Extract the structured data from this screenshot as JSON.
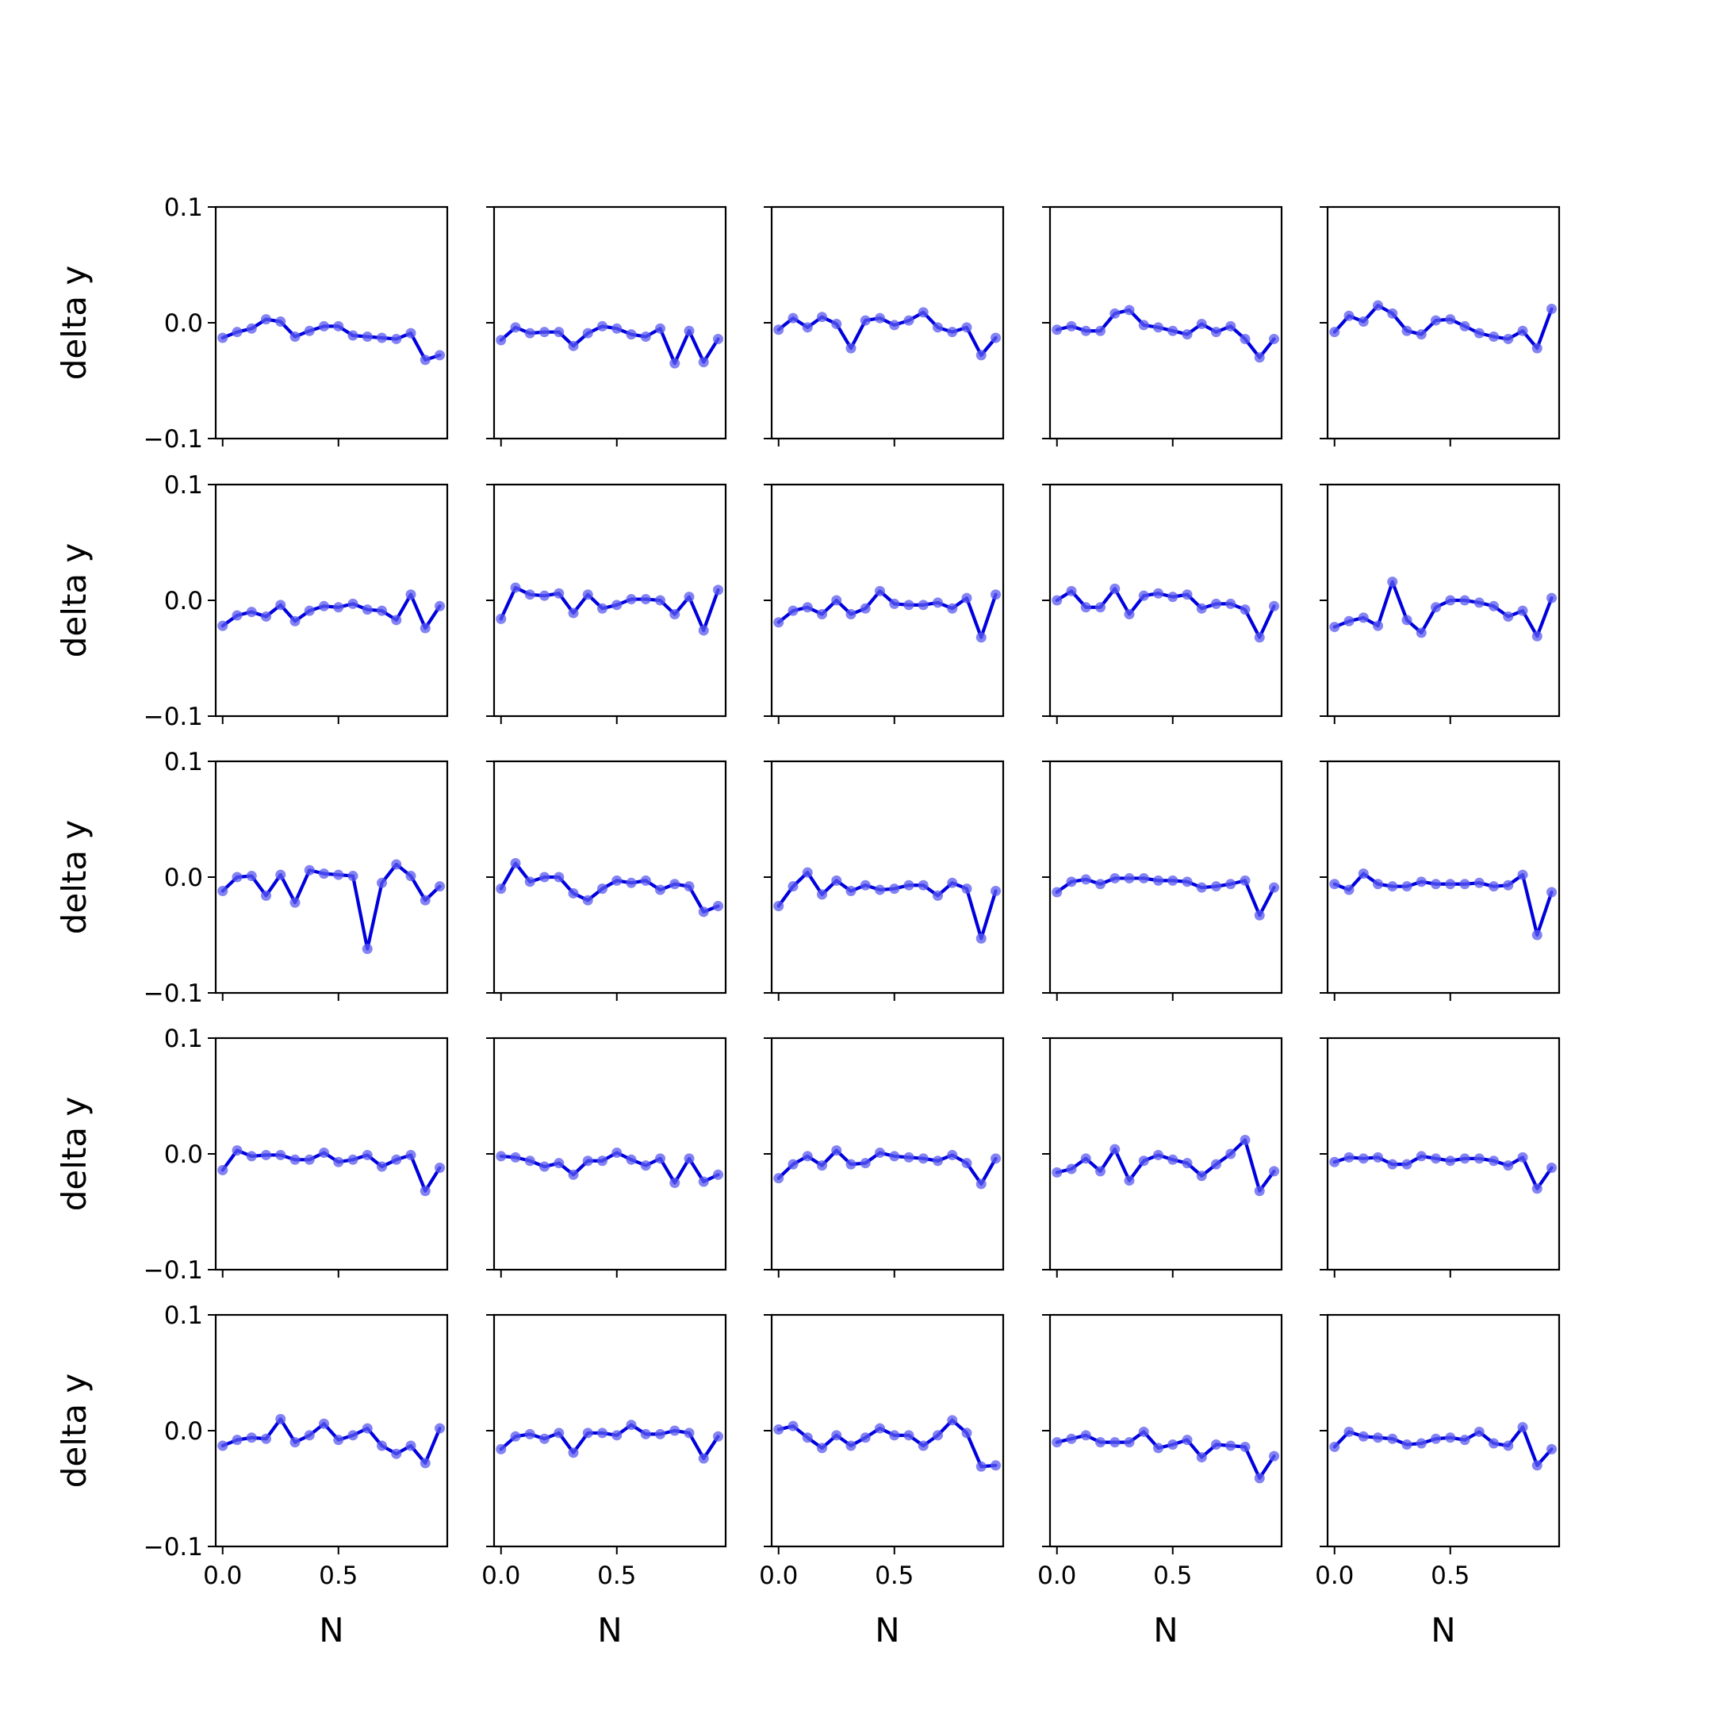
{
  "chart_data": {
    "type": "line",
    "layout": "grid",
    "rows": 5,
    "cols": 5,
    "xlabel": "N",
    "ylabel": "delta y",
    "ylim": [
      -0.1,
      0.1
    ],
    "yticks": [
      -0.1,
      0.0,
      0.1
    ],
    "ytick_labels": [
      "−0.1",
      "0.0",
      "0.1"
    ],
    "xticks": [
      0.0,
      0.5
    ],
    "xtick_labels": [
      "0.0",
      "0.5"
    ],
    "xlim": [
      -0.03,
      0.97
    ],
    "grid": false,
    "x": [
      0.0,
      0.0625,
      0.125,
      0.1875,
      0.25,
      0.3125,
      0.375,
      0.4375,
      0.5,
      0.5625,
      0.625,
      0.6875,
      0.75,
      0.8125,
      0.875,
      0.9375
    ],
    "line_color": "#0000dd",
    "marker_color": "#5a5af0",
    "panels": [
      [
        -0.013,
        -0.008,
        -0.005,
        0.003,
        0.001,
        -0.012,
        -0.007,
        -0.003,
        -0.003,
        -0.011,
        -0.012,
        -0.013,
        -0.014,
        -0.009,
        -0.032,
        -0.028
      ],
      [
        -0.015,
        -0.004,
        -0.009,
        -0.008,
        -0.008,
        -0.02,
        -0.009,
        -0.003,
        -0.005,
        -0.01,
        -0.012,
        -0.005,
        -0.035,
        -0.007,
        -0.034,
        -0.014
      ],
      [
        -0.006,
        0.004,
        -0.004,
        0.005,
        -0.001,
        -0.022,
        0.002,
        0.004,
        -0.002,
        0.002,
        0.009,
        -0.004,
        -0.008,
        -0.004,
        -0.028,
        -0.013
      ],
      [
        -0.006,
        -0.003,
        -0.007,
        -0.007,
        0.008,
        0.011,
        -0.002,
        -0.004,
        -0.007,
        -0.01,
        -0.001,
        -0.008,
        -0.003,
        -0.014,
        -0.03,
        -0.014
      ],
      [
        -0.008,
        0.006,
        0.001,
        0.015,
        0.008,
        -0.007,
        -0.01,
        0.002,
        0.003,
        -0.003,
        -0.009,
        -0.012,
        -0.014,
        -0.007,
        -0.022,
        0.012
      ],
      [
        -0.022,
        -0.013,
        -0.01,
        -0.014,
        -0.004,
        -0.018,
        -0.009,
        -0.005,
        -0.006,
        -0.003,
        -0.008,
        -0.009,
        -0.017,
        0.005,
        -0.024,
        -0.005
      ],
      [
        -0.016,
        0.011,
        0.005,
        0.004,
        0.006,
        -0.011,
        0.005,
        -0.007,
        -0.004,
        0.001,
        0.001,
        0.0,
        -0.012,
        0.003,
        -0.026,
        0.009
      ],
      [
        -0.019,
        -0.009,
        -0.006,
        -0.012,
        0.0,
        -0.012,
        -0.007,
        0.008,
        -0.003,
        -0.004,
        -0.004,
        -0.002,
        -0.007,
        0.002,
        -0.032,
        0.005
      ],
      [
        0.0,
        0.008,
        -0.006,
        -0.006,
        0.01,
        -0.012,
        0.004,
        0.006,
        0.003,
        0.005,
        -0.007,
        -0.003,
        -0.003,
        -0.008,
        -0.032,
        -0.005
      ],
      [
        -0.023,
        -0.018,
        -0.015,
        -0.022,
        0.016,
        -0.017,
        -0.028,
        -0.006,
        0.0,
        0.0,
        -0.002,
        -0.005,
        -0.014,
        -0.009,
        -0.031,
        0.002
      ],
      [
        -0.012,
        0.0,
        0.001,
        -0.016,
        0.002,
        -0.022,
        0.006,
        0.003,
        0.002,
        0.001,
        -0.062,
        -0.005,
        0.011,
        0.001,
        -0.02,
        -0.008
      ],
      [
        -0.01,
        0.012,
        -0.004,
        0.0,
        0.0,
        -0.014,
        -0.02,
        -0.01,
        -0.003,
        -0.005,
        -0.003,
        -0.011,
        -0.006,
        -0.008,
        -0.03,
        -0.025
      ],
      [
        -0.025,
        -0.008,
        0.004,
        -0.015,
        -0.003,
        -0.012,
        -0.007,
        -0.011,
        -0.01,
        -0.007,
        -0.007,
        -0.016,
        -0.005,
        -0.01,
        -0.053,
        -0.012
      ],
      [
        -0.013,
        -0.004,
        -0.002,
        -0.006,
        -0.001,
        -0.001,
        -0.001,
        -0.003,
        -0.003,
        -0.004,
        -0.009,
        -0.008,
        -0.006,
        -0.003,
        -0.033,
        -0.009
      ],
      [
        -0.006,
        -0.011,
        0.003,
        -0.006,
        -0.008,
        -0.008,
        -0.004,
        -0.006,
        -0.006,
        -0.006,
        -0.005,
        -0.008,
        -0.007,
        0.002,
        -0.05,
        -0.013
      ],
      [
        -0.014,
        0.003,
        -0.002,
        -0.001,
        -0.001,
        -0.005,
        -0.005,
        0.001,
        -0.007,
        -0.005,
        -0.001,
        -0.011,
        -0.005,
        -0.001,
        -0.032,
        -0.012
      ],
      [
        -0.002,
        -0.003,
        -0.006,
        -0.011,
        -0.008,
        -0.018,
        -0.006,
        -0.006,
        0.001,
        -0.005,
        -0.01,
        -0.004,
        -0.025,
        -0.004,
        -0.024,
        -0.018
      ],
      [
        -0.021,
        -0.009,
        -0.002,
        -0.01,
        0.003,
        -0.009,
        -0.008,
        0.001,
        -0.002,
        -0.003,
        -0.004,
        -0.006,
        -0.001,
        -0.008,
        -0.026,
        -0.004
      ],
      [
        -0.016,
        -0.013,
        -0.004,
        -0.015,
        0.004,
        -0.023,
        -0.006,
        -0.001,
        -0.005,
        -0.008,
        -0.019,
        -0.009,
        0.0,
        0.012,
        -0.032,
        -0.015
      ],
      [
        -0.007,
        -0.003,
        -0.004,
        -0.003,
        -0.009,
        -0.009,
        -0.002,
        -0.004,
        -0.006,
        -0.004,
        -0.004,
        -0.006,
        -0.01,
        -0.003,
        -0.03,
        -0.012
      ],
      [
        -0.013,
        -0.008,
        -0.006,
        -0.007,
        0.01,
        -0.01,
        -0.004,
        0.006,
        -0.008,
        -0.004,
        0.002,
        -0.013,
        -0.02,
        -0.013,
        -0.028,
        0.002
      ],
      [
        -0.016,
        -0.005,
        -0.003,
        -0.007,
        -0.002,
        -0.019,
        -0.002,
        -0.002,
        -0.004,
        0.005,
        -0.003,
        -0.003,
        0.0,
        -0.002,
        -0.024,
        -0.005
      ],
      [
        0.001,
        0.004,
        -0.006,
        -0.015,
        -0.004,
        -0.013,
        -0.006,
        0.002,
        -0.004,
        -0.004,
        -0.013,
        -0.004,
        0.009,
        -0.002,
        -0.031,
        -0.03
      ],
      [
        -0.01,
        -0.007,
        -0.004,
        -0.01,
        -0.01,
        -0.01,
        -0.001,
        -0.015,
        -0.012,
        -0.008,
        -0.023,
        -0.012,
        -0.013,
        -0.014,
        -0.041,
        -0.022
      ],
      [
        -0.014,
        -0.001,
        -0.005,
        -0.006,
        -0.007,
        -0.012,
        -0.011,
        -0.007,
        -0.006,
        -0.008,
        -0.001,
        -0.011,
        -0.013,
        0.003,
        -0.03,
        -0.016
      ]
    ]
  }
}
